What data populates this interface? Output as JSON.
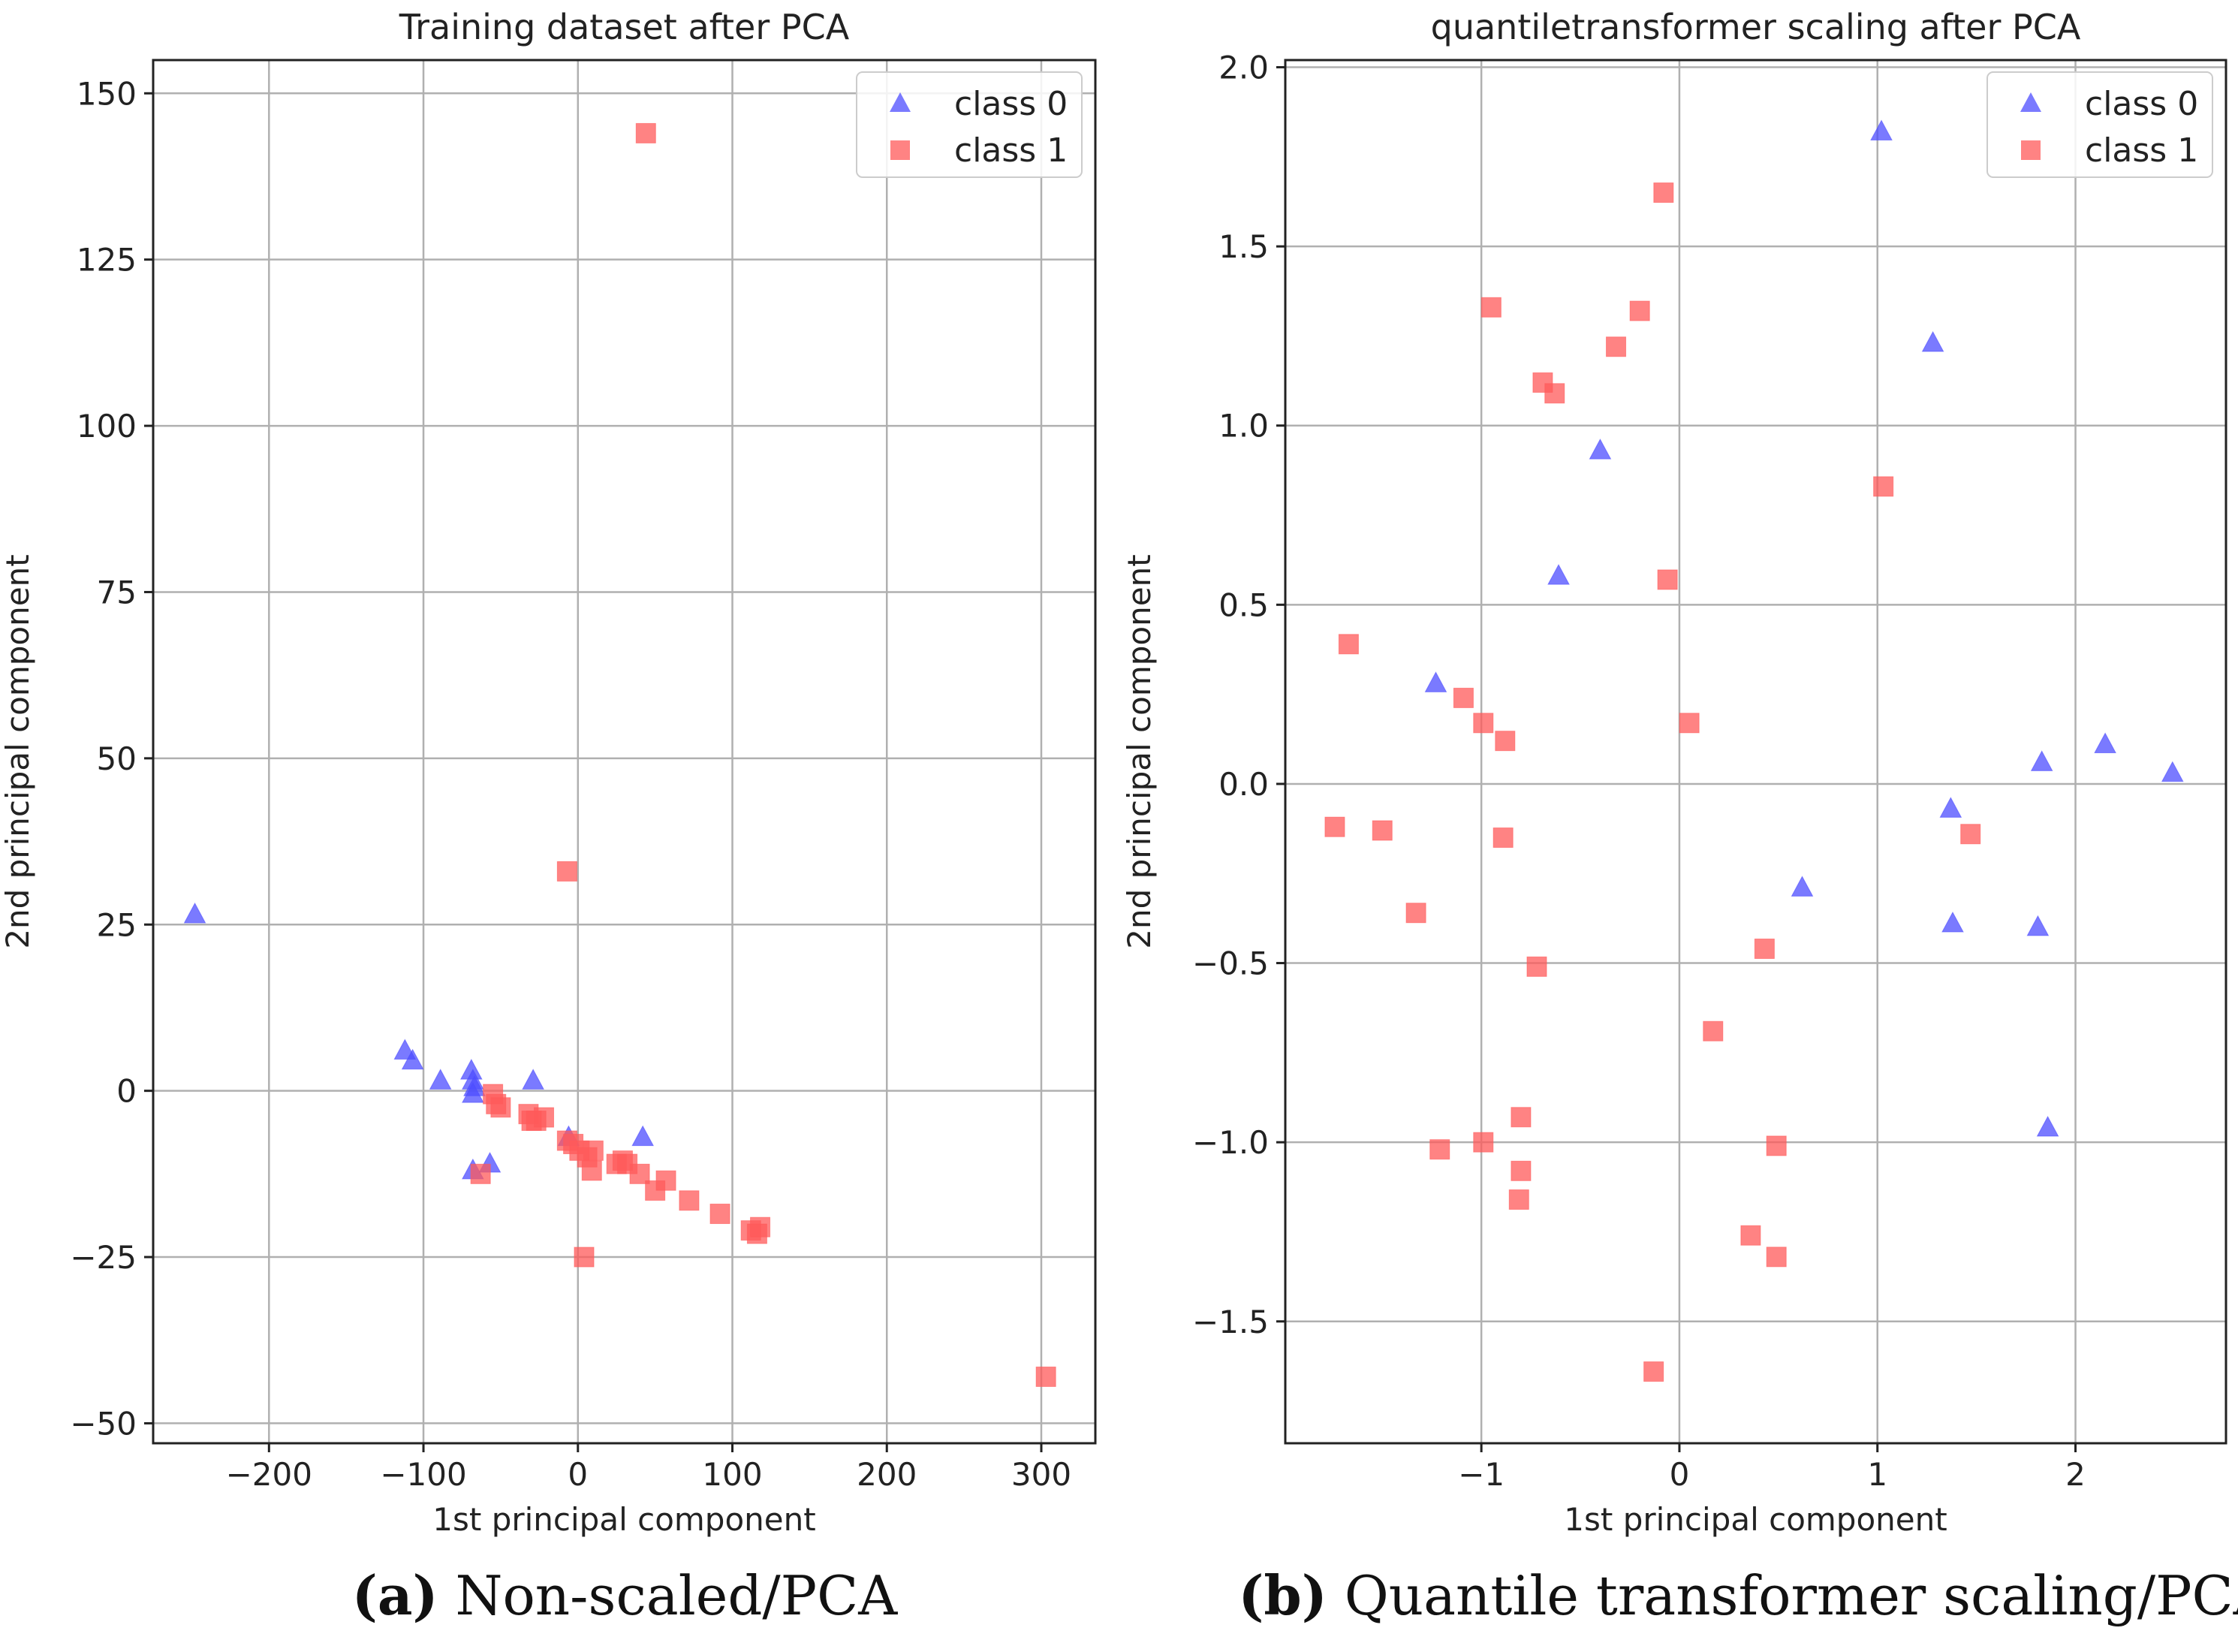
{
  "chart_data": [
    {
      "type": "scatter",
      "title": "Training dataset after PCA",
      "xlabel": "1st principal component",
      "ylabel": "2nd principal component",
      "xlim": [
        -275,
        335
      ],
      "ylim": [
        -53,
        155
      ],
      "xticks": [
        -200,
        -100,
        0,
        100,
        200,
        300
      ],
      "xtick_labels": [
        "−200",
        "−100",
        "0",
        "100",
        "200",
        "300"
      ],
      "yticks": [
        -50,
        -25,
        0,
        25,
        50,
        75,
        100,
        125,
        150
      ],
      "ytick_labels": [
        "−50",
        "−25",
        "0",
        "25",
        "50",
        "75",
        "100",
        "125",
        "150"
      ],
      "grid": true,
      "legend": "top-right",
      "caption_letter": "(a)",
      "caption_text": " Non-scaled/PCA",
      "series": [
        {
          "name": "class 0",
          "marker": "triangle",
          "color": "#4d4dff",
          "points": [
            [
              -248,
              26.5
            ],
            [
              -112,
              6
            ],
            [
              -107,
              4.5
            ],
            [
              -89,
              1.5
            ],
            [
              -69,
              3
            ],
            [
              -68,
              1.5
            ],
            [
              -67,
              0.5
            ],
            [
              -68,
              -0.5
            ],
            [
              -29,
              1.5
            ],
            [
              -68,
              -12
            ],
            [
              -57,
              -11
            ],
            [
              -6,
              -7
            ],
            [
              42,
              -7
            ]
          ]
        },
        {
          "name": "class 1",
          "marker": "square",
          "color": "#ff5a5a",
          "points": [
            [
              44,
              144
            ],
            [
              -7,
              33
            ],
            [
              -55,
              -0.5
            ],
            [
              -53,
              -2
            ],
            [
              -50,
              -2.5
            ],
            [
              -32,
              -3.5
            ],
            [
              -30,
              -4.5
            ],
            [
              -27,
              -4.5
            ],
            [
              -22,
              -4
            ],
            [
              -7,
              -7.5
            ],
            [
              -3,
              -8
            ],
            [
              1,
              -9
            ],
            [
              6,
              -10
            ],
            [
              10,
              -9
            ],
            [
              9,
              -12
            ],
            [
              25,
              -11
            ],
            [
              29,
              -10.5
            ],
            [
              32,
              -11
            ],
            [
              40,
              -12.5
            ],
            [
              50,
              -15
            ],
            [
              57,
              -13.5
            ],
            [
              72,
              -16.5
            ],
            [
              92,
              -18.5
            ],
            [
              112,
              -21
            ],
            [
              116,
              -21.5
            ],
            [
              118,
              -20.5
            ],
            [
              -63,
              -12.5
            ],
            [
              4,
              -25
            ],
            [
              303,
              -43
            ]
          ]
        }
      ]
    },
    {
      "type": "scatter",
      "title": "quantiletransformer scaling after PCA",
      "xlabel": "1st principal component",
      "ylabel": "2nd principal component",
      "xlim": [
        -1.99,
        2.76
      ],
      "ylim": [
        -1.84,
        2.02
      ],
      "xticks": [
        -1,
        0,
        1,
        2
      ],
      "xtick_labels": [
        "−1",
        "0",
        "1",
        "2"
      ],
      "yticks": [
        -1.5,
        -1.0,
        -0.5,
        0.0,
        0.5,
        1.0,
        1.5,
        2.0
      ],
      "ytick_labels": [
        "−1.5",
        "−1.0",
        "−0.5",
        "0.0",
        "0.5",
        "1.0",
        "1.5",
        "2.0"
      ],
      "grid": true,
      "legend": "top-right",
      "caption_letter": "(b)",
      "caption_text": " Quantile transformer scaling/PCA",
      "series": [
        {
          "name": "class 0",
          "marker": "triangle",
          "color": "#4d4dff",
          "points": [
            [
              1.02,
              1.82
            ],
            [
              1.28,
              1.23
            ],
            [
              -0.4,
              0.93
            ],
            [
              -0.61,
              0.58
            ],
            [
              -1.23,
              0.28
            ],
            [
              1.83,
              0.06
            ],
            [
              2.15,
              0.11
            ],
            [
              2.49,
              0.03
            ],
            [
              1.37,
              -0.07
            ],
            [
              0.62,
              -0.29
            ],
            [
              1.38,
              -0.39
            ],
            [
              1.81,
              -0.4
            ],
            [
              1.86,
              -0.96
            ]
          ]
        },
        {
          "name": "class 1",
          "marker": "square",
          "color": "#ff5a5a",
          "points": [
            [
              -0.08,
              1.65
            ],
            [
              -0.95,
              1.33
            ],
            [
              -0.2,
              1.32
            ],
            [
              -0.32,
              1.22
            ],
            [
              -0.69,
              1.12
            ],
            [
              -0.63,
              1.09
            ],
            [
              1.03,
              0.83
            ],
            [
              -0.06,
              0.57
            ],
            [
              -1.67,
              0.39
            ],
            [
              -1.09,
              0.24
            ],
            [
              -0.99,
              0.17
            ],
            [
              0.05,
              0.17
            ],
            [
              -0.88,
              0.12
            ],
            [
              -1.74,
              -0.12
            ],
            [
              -1.5,
              -0.13
            ],
            [
              -0.89,
              -0.15
            ],
            [
              1.47,
              -0.14
            ],
            [
              -1.33,
              -0.36
            ],
            [
              0.43,
              -0.46
            ],
            [
              -0.72,
              -0.51
            ],
            [
              0.17,
              -0.69
            ],
            [
              -0.8,
              -0.93
            ],
            [
              -1.21,
              -1.02
            ],
            [
              -0.99,
              -1.0
            ],
            [
              0.49,
              -1.01
            ],
            [
              -0.8,
              -1.08
            ],
            [
              -0.81,
              -1.16
            ],
            [
              0.36,
              -1.26
            ],
            [
              0.49,
              -1.32
            ],
            [
              -0.13,
              -1.64
            ]
          ]
        }
      ]
    }
  ]
}
